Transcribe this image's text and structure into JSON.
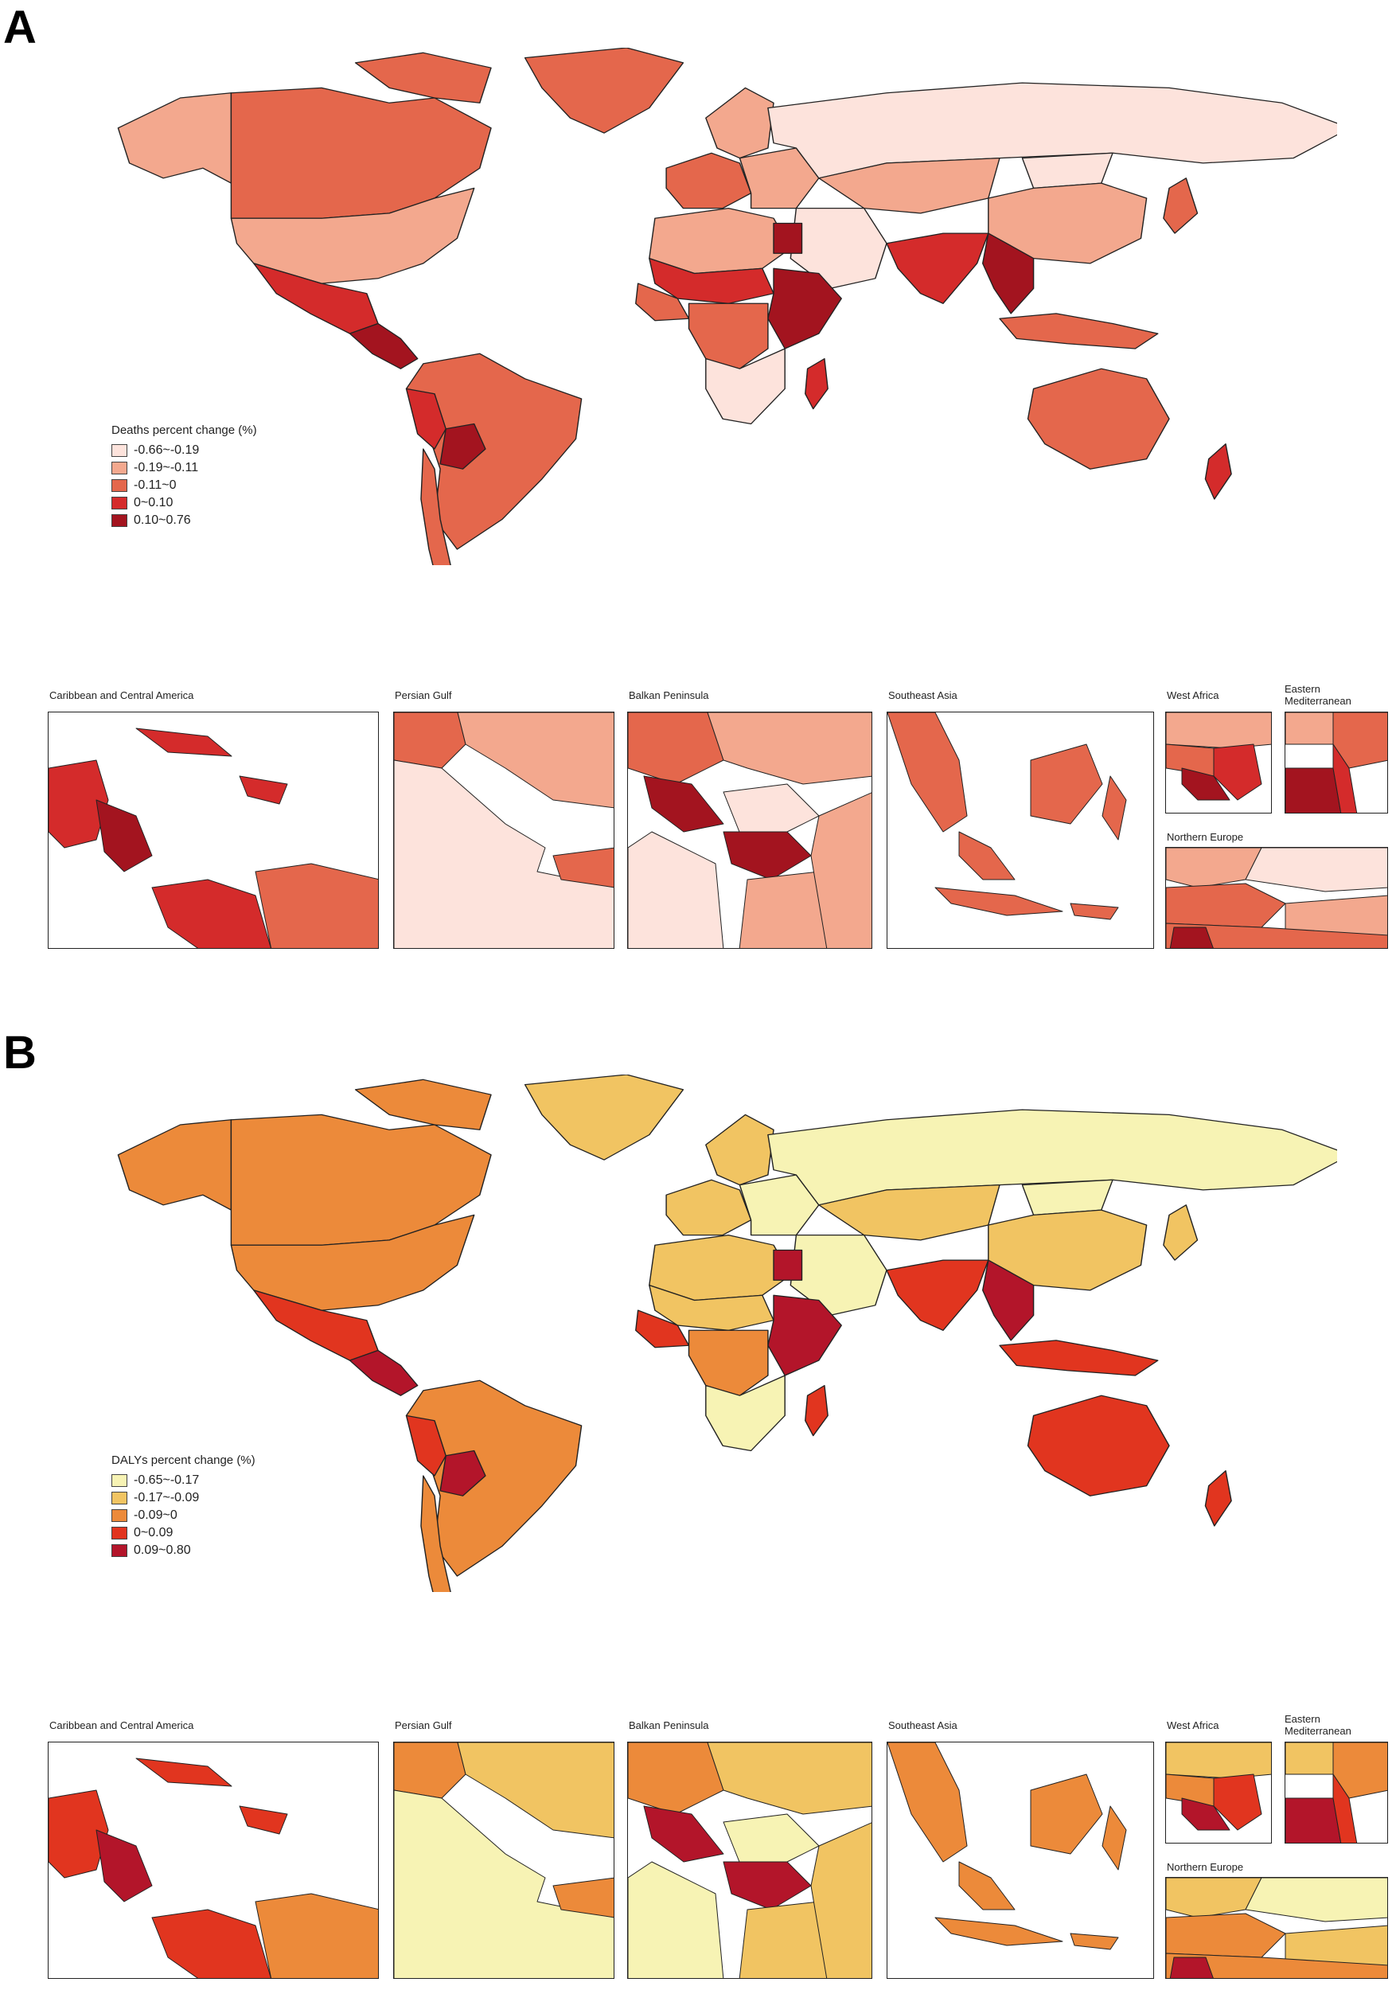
{
  "figure_a": {
    "letter": "A",
    "legend": {
      "title": "Deaths percent change (%)",
      "bins": [
        {
          "label": "-0.66~-0.19",
          "color": "#fde3dc"
        },
        {
          "label": "-0.19~-0.11",
          "color": "#f3a88e"
        },
        {
          "label": "-0.11~0",
          "color": "#e4674c"
        },
        {
          "label": "0~0.10",
          "color": "#d42b2b"
        },
        {
          "label": "0.10~0.76",
          "color": "#a3141f"
        }
      ]
    },
    "insets": [
      {
        "label": "Caribbean and Central America"
      },
      {
        "label": "Persian Gulf"
      },
      {
        "label": "Balkan Peninsula"
      },
      {
        "label": "Southeast Asia"
      },
      {
        "label": "West Africa"
      },
      {
        "label": "Eastern Mediterranean"
      },
      {
        "label": "Northern Europe"
      }
    ]
  },
  "figure_b": {
    "letter": "B",
    "legend": {
      "title": "DALYs percent change (%)",
      "bins": [
        {
          "label": "-0.65~-0.17",
          "color": "#f7f3b4"
        },
        {
          "label": "-0.17~-0.09",
          "color": "#f1c462"
        },
        {
          "label": "-0.09~0",
          "color": "#ec8a3a"
        },
        {
          "label": "0~0.09",
          "color": "#e1351f"
        },
        {
          "label": "0.09~0.80",
          "color": "#b3152a"
        }
      ]
    },
    "insets": [
      {
        "label": "Caribbean and Central America"
      },
      {
        "label": "Persian Gulf"
      },
      {
        "label": "Balkan Peninsula"
      },
      {
        "label": "Southeast Asia"
      },
      {
        "label": "West Africa"
      },
      {
        "label": "Eastern Mediterranean"
      },
      {
        "label": "Northern Europe"
      }
    ]
  },
  "region_classes": {
    "a": {
      "north_america": 3,
      "alaska": 2,
      "greenland": 3,
      "canada_arctic": 3,
      "usa": 2,
      "mexico": 4,
      "central_america": 5,
      "south_america": 3,
      "bolivia": 5,
      "peru": 4,
      "chile": 3,
      "russia": 1,
      "europe_west": 3,
      "europe_east": 2,
      "scandinavia": 2,
      "north_africa": 2,
      "egypt": 5,
      "west_africa": 3,
      "sahel": 4,
      "east_africa": 5,
      "central_africa": 3,
      "southern_africa": 1,
      "madagascar": 4,
      "middle_east": 1,
      "central_asia": 2,
      "china": 2,
      "india": 4,
      "southeast_asia": 5,
      "indonesia": 3,
      "japan": 3,
      "australia": 3,
      "new_zealand": 4,
      "mongolia": 1
    },
    "b": {
      "north_america": 3,
      "alaska": 3,
      "greenland": 2,
      "canada_arctic": 3,
      "usa": 3,
      "mexico": 4,
      "central_america": 5,
      "south_america": 3,
      "bolivia": 5,
      "peru": 4,
      "chile": 3,
      "russia": 1,
      "europe_west": 2,
      "europe_east": 1,
      "scandinavia": 2,
      "north_africa": 2,
      "egypt": 5,
      "west_africa": 4,
      "sahel": 2,
      "east_africa": 5,
      "central_africa": 3,
      "southern_africa": 1,
      "madagascar": 4,
      "middle_east": 1,
      "central_asia": 2,
      "china": 2,
      "india": 4,
      "southeast_asia": 5,
      "indonesia": 4,
      "japan": 2,
      "australia": 4,
      "new_zealand": 4,
      "mongolia": 1
    }
  }
}
